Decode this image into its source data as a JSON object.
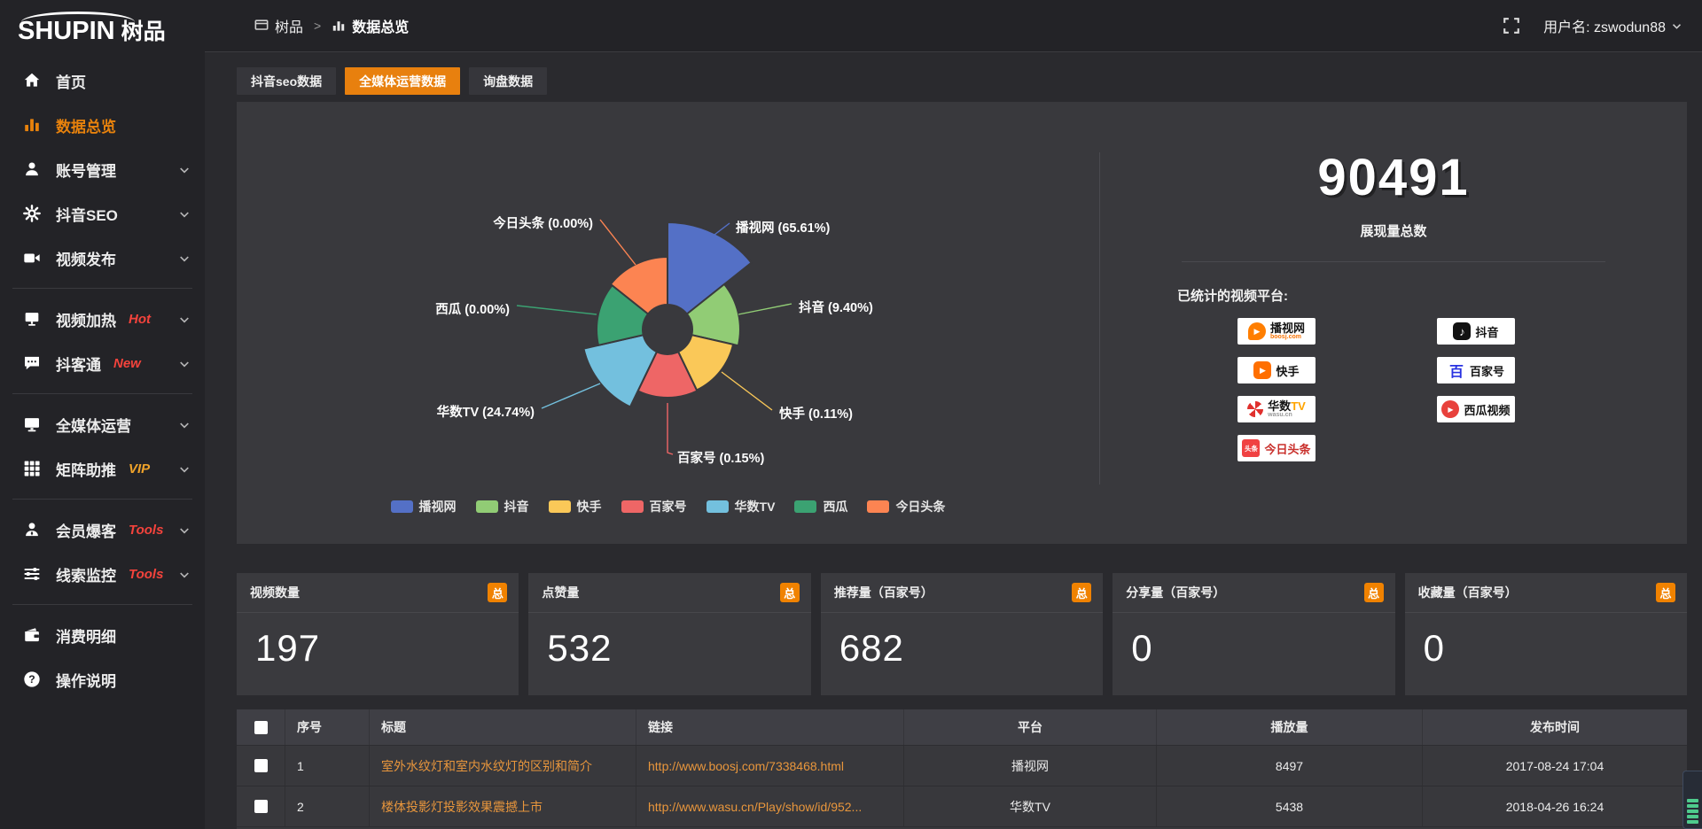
{
  "brand": {
    "name_en": "SHUPIN",
    "name_cn": "树品"
  },
  "topbar": {
    "breadcrumb_root": "树品",
    "breadcrumb_sep": ">",
    "breadcrumb_current": "数据总览",
    "username": "用户名: zswodun88"
  },
  "sidebar": {
    "items": [
      {
        "label": "首页",
        "icon": "home-icon"
      },
      {
        "label": "数据总览",
        "icon": "bar-chart-icon",
        "active": true
      },
      {
        "label": "账号管理",
        "icon": "user-icon",
        "chevron": true
      },
      {
        "label": "抖音SEO",
        "icon": "gear-icon",
        "chevron": true
      },
      {
        "label": "视频发布",
        "icon": "video-camera-icon",
        "chevron": true
      },
      {
        "divider": true
      },
      {
        "label": "视频加热",
        "icon": "screen-icon",
        "badge": "Hot",
        "badge_color": "#f4433c",
        "chevron": true
      },
      {
        "label": "抖客通",
        "icon": "chat-icon",
        "badge": "New",
        "badge_color": "#f4433c",
        "chevron": true
      },
      {
        "divider": true
      },
      {
        "label": "全媒体运营",
        "icon": "monitor-icon",
        "chevron": true
      },
      {
        "label": "矩阵助推",
        "icon": "grid-icon",
        "badge": "VIP",
        "badge_color": "#f0a32a",
        "chevron": true
      },
      {
        "divider": true
      },
      {
        "label": "会员爆客",
        "icon": "member-icon",
        "badge": "Tools",
        "badge_color": "#f4433c",
        "chevron": true
      },
      {
        "label": "线索监控",
        "icon": "sliders-icon",
        "badge": "Tools",
        "badge_color": "#f4433c",
        "chevron": true
      },
      {
        "divider": true
      },
      {
        "label": "消费明细",
        "icon": "wallet-icon"
      },
      {
        "label": "操作说明",
        "icon": "question-icon"
      }
    ]
  },
  "tabs": [
    {
      "label": "抖音seo数据",
      "active": false
    },
    {
      "label": "全媒体运营数据",
      "active": true
    },
    {
      "label": "询盘数据",
      "active": false
    }
  ],
  "chart_data": {
    "type": "pie",
    "variant": "nightingale-rose",
    "categories": [
      "播视网",
      "抖音",
      "快手",
      "百家号",
      "华数TV",
      "西瓜",
      "今日头条"
    ],
    "values_percent": [
      65.61,
      9.4,
      0.11,
      0.15,
      24.74,
      0.0,
      0.0
    ],
    "colors": [
      "#5470c6",
      "#91cc75",
      "#fac858",
      "#ee6666",
      "#73c0de",
      "#3ba272",
      "#fc8452"
    ],
    "legend": [
      "播视网",
      "抖音",
      "快手",
      "百家号",
      "华数TV",
      "西瓜",
      "今日头条"
    ],
    "legend_position": "bottom",
    "display_radii": [
      121,
      82,
      76,
      77,
      97,
      80,
      82
    ],
    "inner_radius": 28
  },
  "summary": {
    "total_value": "90491",
    "total_label": "展现量总数",
    "platforms_title": "已统计的视频平台:",
    "platforms": [
      {
        "name": "播视网",
        "sub": "boosj.com",
        "style": "boosj",
        "col": 0
      },
      {
        "name": "快手",
        "style": "kuaishou",
        "col": 0
      },
      {
        "name": "华数",
        "name2": "TV",
        "sub": "wasu.cn",
        "style": "wasu",
        "col": 0
      },
      {
        "name": "今日头条",
        "icon_text": "头条",
        "style": "toutiao",
        "col": 0
      },
      {
        "name": "抖音",
        "style": "douyin",
        "col": 1
      },
      {
        "name": "百家号",
        "icon_text": "百",
        "style": "baijiahao",
        "col": 1
      },
      {
        "name": "西瓜视频",
        "style": "xigua",
        "col": 1
      }
    ]
  },
  "stat_cards": [
    {
      "title": "视频数量",
      "badge": "总",
      "value": "197"
    },
    {
      "title": "点赞量",
      "badge": "总",
      "value": "532"
    },
    {
      "title": "推荐量（百家号）",
      "badge": "总",
      "value": "682"
    },
    {
      "title": "分享量（百家号）",
      "badge": "总",
      "value": "0"
    },
    {
      "title": "收藏量（百家号）",
      "badge": "总",
      "value": "0"
    }
  ],
  "table": {
    "headers": [
      "序号",
      "标题",
      "链接",
      "平台",
      "播放量",
      "发布时间"
    ],
    "rows": [
      {
        "no": "1",
        "title": "室外水纹灯和室内水纹灯的区别和简介",
        "link": "http://www.boosj.com/7338468.html",
        "platform": "播视网",
        "plays": "8497",
        "time": "2017-08-24 17:04"
      },
      {
        "no": "2",
        "title": "楼体投影灯投影效果震撼上市",
        "link": "http://www.wasu.cn/Play/show/id/952...",
        "platform": "华数TV",
        "plays": "5438",
        "time": "2018-04-26 16:24"
      }
    ]
  },
  "colors": {
    "accent_orange": "#e8800e",
    "badge_orange": "#f08200",
    "link_orange": "#e8963c",
    "sidebar_active": "#e8820c"
  }
}
